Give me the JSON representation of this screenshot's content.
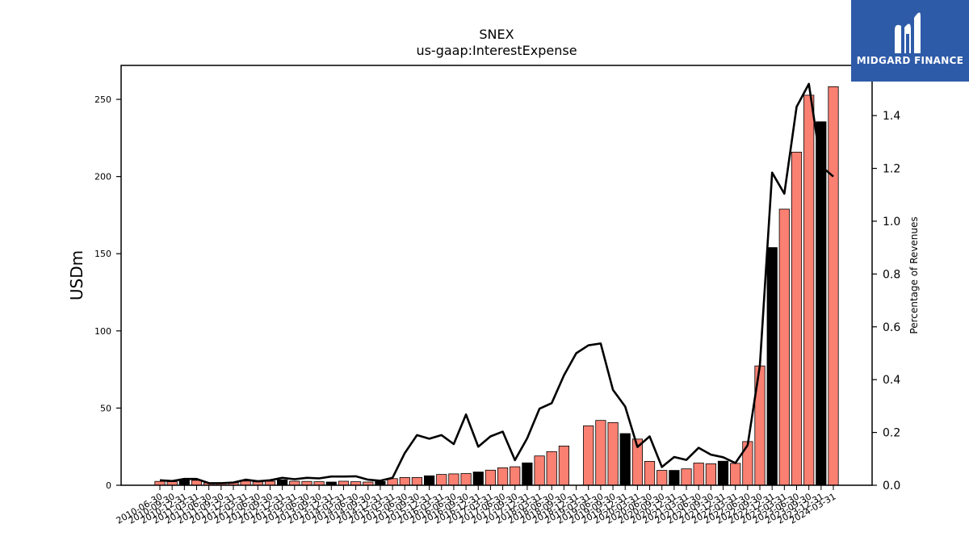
{
  "chart_data": {
    "type": "bar",
    "title": "SNEX",
    "subtitle": "us-gaap:InterestExpense",
    "ylabel": "USDm",
    "y2label": "Percentage of Revenues",
    "ylim": [
      0,
      272
    ],
    "y2lim": [
      0,
      1.59
    ],
    "yticks": [
      0,
      50,
      100,
      150,
      200,
      250
    ],
    "y2ticks": [
      0.0,
      0.2,
      0.4,
      0.6,
      0.8,
      1.0,
      1.2,
      1.4
    ],
    "categories": [
      "2010-06-30",
      "2010-09-30",
      "2010-12-31",
      "2011-03-31",
      "2011-06-30",
      "2011-09-30",
      "2011-12-31",
      "2012-03-31",
      "2012-06-30",
      "2012-09-30",
      "2012-12-31",
      "2013-03-31",
      "2013-06-30",
      "2013-09-30",
      "2013-12-31",
      "2014-03-31",
      "2014-06-30",
      "2014-09-30",
      "2014-12-31",
      "2015-03-31",
      "2015-06-30",
      "2015-09-30",
      "2015-12-31",
      "2016-03-31",
      "2016-06-30",
      "2016-09-30",
      "2016-12-31",
      "2017-03-31",
      "2017-06-30",
      "2017-09-30",
      "2017-12-31",
      "2018-03-31",
      "2018-06-30",
      "2018-09-30",
      "2018-12-31",
      "2019-03-31",
      "2019-06-30",
      "2019-09-30",
      "2019-12-31",
      "2020-03-31",
      "2020-06-30",
      "2020-09-30",
      "2020-12-31",
      "2021-03-31",
      "2021-06-30",
      "2021-09-30",
      "2021-12-31",
      "2022-03-31",
      "2022-06-30",
      "2022-09-30",
      "2022-12-31",
      "2023-03-31",
      "2023-06-30",
      "2023-09-30",
      "2023-12-31",
      "2024-03-31"
    ],
    "series": [
      {
        "type": "bar",
        "axis": "left",
        "values": [
          2.5,
          2.3,
          3.6,
          3.2,
          1.5,
          1.3,
          1.6,
          2.7,
          2.2,
          2.6,
          3.5,
          2.6,
          2.5,
          2.3,
          2.1,
          2.6,
          2.3,
          2.1,
          2.4,
          4.3,
          5.0,
          5.0,
          6.1,
          7.0,
          7.4,
          7.6,
          8.6,
          9.8,
          11.3,
          12.0,
          14.5,
          19.0,
          21.8,
          25.4,
          0,
          38.5,
          42.0,
          40.6,
          33.5,
          29.9,
          15.5,
          9.6,
          9.6,
          10.6,
          14.4,
          13.9,
          15.6,
          14.2,
          28.3,
          77.3,
          154.0,
          178.9,
          215.8,
          252.7,
          235.5,
          258.2
        ],
        "highlight": [
          false,
          false,
          true,
          false,
          false,
          false,
          false,
          false,
          false,
          false,
          true,
          false,
          false,
          false,
          true,
          false,
          false,
          false,
          true,
          false,
          false,
          false,
          true,
          false,
          false,
          false,
          true,
          false,
          false,
          false,
          true,
          false,
          false,
          false,
          true,
          false,
          false,
          false,
          true,
          false,
          false,
          false,
          true,
          false,
          false,
          false,
          true,
          false,
          false,
          false,
          true,
          false,
          false,
          false,
          true,
          false
        ]
      },
      {
        "type": "line",
        "axis": "right",
        "values": [
          0.019,
          0.016,
          0.024,
          0.024,
          0.008,
          0.008,
          0.01,
          0.021,
          0.015,
          0.019,
          0.028,
          0.023,
          0.028,
          0.026,
          0.033,
          0.033,
          0.034,
          0.021,
          0.017,
          0.028,
          0.122,
          0.19,
          0.176,
          0.19,
          0.156,
          0.268,
          0.146,
          0.185,
          0.203,
          0.095,
          0.178,
          0.29,
          0.311,
          0.416,
          0.5,
          0.53,
          0.537,
          0.361,
          0.298,
          0.145,
          0.185,
          0.069,
          0.107,
          0.096,
          0.142,
          0.116,
          0.106,
          0.084,
          0.152,
          0.453,
          1.184,
          1.104,
          1.433,
          1.52,
          1.209,
          1.169
        ]
      }
    ],
    "colors": {
      "bar": "#fa8072",
      "bar_highlight": "#000000",
      "line": "#000000"
    },
    "grid": false,
    "legend": "none"
  },
  "logo": {
    "text": "MIDGARD FINANCE",
    "background": "#2e5ba8"
  }
}
